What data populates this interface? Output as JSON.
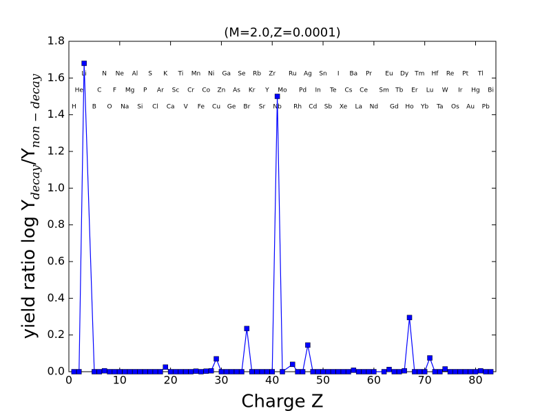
{
  "chart_data": {
    "type": "line",
    "title": "(M=2.0,Z=0.0001)",
    "xlabel": "Charge Z",
    "ylabel_parts": [
      "yield ratio log Y",
      "decay",
      "/Y",
      "non − decay"
    ],
    "color": "#0000ff",
    "x": [
      1,
      2,
      3,
      5,
      6,
      7,
      8,
      9,
      10,
      11,
      12,
      13,
      14,
      15,
      16,
      17,
      18,
      19,
      20,
      21,
      22,
      23,
      24,
      25,
      26,
      27,
      28,
      29,
      30,
      31,
      32,
      33,
      34,
      35,
      36,
      37,
      38,
      39,
      40,
      41,
      42,
      44,
      45,
      46,
      47,
      48,
      49,
      50,
      51,
      52,
      53,
      54,
      55,
      56,
      57,
      58,
      59,
      60,
      62,
      63,
      64,
      65,
      66,
      67,
      68,
      69,
      70,
      71,
      72,
      73,
      74,
      75,
      76,
      77,
      78,
      79,
      80,
      81,
      82,
      83
    ],
    "values": [
      0,
      0,
      1.68,
      0,
      0,
      0.005,
      0,
      0,
      0,
      0,
      0,
      0,
      0,
      0,
      0,
      0,
      0,
      0.025,
      0,
      0,
      0,
      0,
      0,
      0.003,
      0,
      0.003,
      0.005,
      0.07,
      0,
      0,
      0,
      0,
      0,
      0.235,
      0,
      0,
      0,
      0,
      0,
      1.5,
      0,
      0.04,
      0,
      0,
      0.145,
      0,
      0,
      0,
      0,
      0,
      0,
      0,
      0,
      0.008,
      0,
      0,
      0,
      0,
      0,
      0.012,
      0,
      0,
      0.005,
      0.295,
      0,
      0,
      0,
      0.075,
      0,
      0,
      0.015,
      0,
      0,
      0,
      0,
      0,
      0,
      0.005,
      0,
      0
    ],
    "annotations": [
      {
        "text": "H",
        "x": 1
      },
      {
        "text": "He",
        "x": 2
      },
      {
        "text": "Li",
        "x": 3
      },
      {
        "text": "B",
        "x": 5
      },
      {
        "text": "C",
        "x": 6
      },
      {
        "text": "N",
        "x": 7
      },
      {
        "text": "O",
        "x": 8
      },
      {
        "text": "F",
        "x": 9
      },
      {
        "text": "Ne",
        "x": 10
      },
      {
        "text": "Na",
        "x": 11
      },
      {
        "text": "Mg",
        "x": 12
      },
      {
        "text": "Al",
        "x": 13
      },
      {
        "text": "Si",
        "x": 14
      },
      {
        "text": "P",
        "x": 15
      },
      {
        "text": "S",
        "x": 16
      },
      {
        "text": "Cl",
        "x": 17
      },
      {
        "text": "Ar",
        "x": 18
      },
      {
        "text": "K",
        "x": 19
      },
      {
        "text": "Ca",
        "x": 20
      },
      {
        "text": "Sc",
        "x": 21
      },
      {
        "text": "Ti",
        "x": 22
      },
      {
        "text": "V",
        "x": 23
      },
      {
        "text": "Cr",
        "x": 24
      },
      {
        "text": "Mn",
        "x": 25
      },
      {
        "text": "Fe",
        "x": 26
      },
      {
        "text": "Co",
        "x": 27
      },
      {
        "text": "Ni",
        "x": 28
      },
      {
        "text": "Cu",
        "x": 29
      },
      {
        "text": "Zn",
        "x": 30
      },
      {
        "text": "Ga",
        "x": 31
      },
      {
        "text": "Ge",
        "x": 32
      },
      {
        "text": "As",
        "x": 33
      },
      {
        "text": "Se",
        "x": 34
      },
      {
        "text": "Br",
        "x": 35
      },
      {
        "text": "Kr",
        "x": 36
      },
      {
        "text": "Rb",
        "x": 37
      },
      {
        "text": "Sr",
        "x": 38
      },
      {
        "text": "Y",
        "x": 39
      },
      {
        "text": "Zr",
        "x": 40
      },
      {
        "text": "Nb",
        "x": 41
      },
      {
        "text": "Mo",
        "x": 42
      },
      {
        "text": "Ru",
        "x": 44
      },
      {
        "text": "Rh",
        "x": 45
      },
      {
        "text": "Pd",
        "x": 46
      },
      {
        "text": "Ag",
        "x": 47
      },
      {
        "text": "Cd",
        "x": 48
      },
      {
        "text": "In",
        "x": 49
      },
      {
        "text": "Sn",
        "x": 50
      },
      {
        "text": "Sb",
        "x": 51
      },
      {
        "text": "Te",
        "x": 52
      },
      {
        "text": "I",
        "x": 53
      },
      {
        "text": "Xe",
        "x": 54
      },
      {
        "text": "Cs",
        "x": 55
      },
      {
        "text": "Ba",
        "x": 56
      },
      {
        "text": "La",
        "x": 57
      },
      {
        "text": "Ce",
        "x": 58
      },
      {
        "text": "Pr",
        "x": 59
      },
      {
        "text": "Nd",
        "x": 60
      },
      {
        "text": "Sm",
        "x": 62
      },
      {
        "text": "Eu",
        "x": 63
      },
      {
        "text": "Gd",
        "x": 64
      },
      {
        "text": "Tb",
        "x": 65
      },
      {
        "text": "Dy",
        "x": 66
      },
      {
        "text": "Ho",
        "x": 67
      },
      {
        "text": "Er",
        "x": 68
      },
      {
        "text": "Tm",
        "x": 69
      },
      {
        "text": "Yb",
        "x": 70
      },
      {
        "text": "Lu",
        "x": 71
      },
      {
        "text": "Hf",
        "x": 72
      },
      {
        "text": "Ta",
        "x": 73
      },
      {
        "text": "W",
        "x": 74
      },
      {
        "text": "Re",
        "x": 75
      },
      {
        "text": "Os",
        "x": 76
      },
      {
        "text": "Ir",
        "x": 77
      },
      {
        "text": "Pt",
        "x": 78
      },
      {
        "text": "Au",
        "x": 79
      },
      {
        "text": "Hg",
        "x": 80
      },
      {
        "text": "Tl",
        "x": 81
      },
      {
        "text": "Pb",
        "x": 82
      },
      {
        "text": "Bi",
        "x": 83
      }
    ],
    "xlim": [
      0,
      84
    ],
    "ylim": [
      0,
      1.8
    ],
    "xticks": [
      0,
      10,
      20,
      30,
      40,
      50,
      60,
      70,
      80
    ],
    "yticks": [
      {
        "value": 0,
        "label": "0.0"
      },
      0.2,
      0.4,
      0.6,
      0.8,
      {
        "value": 1,
        "label": "1.0"
      },
      1.2,
      1.4,
      1.6,
      1.8
    ],
    "grid": false
  }
}
